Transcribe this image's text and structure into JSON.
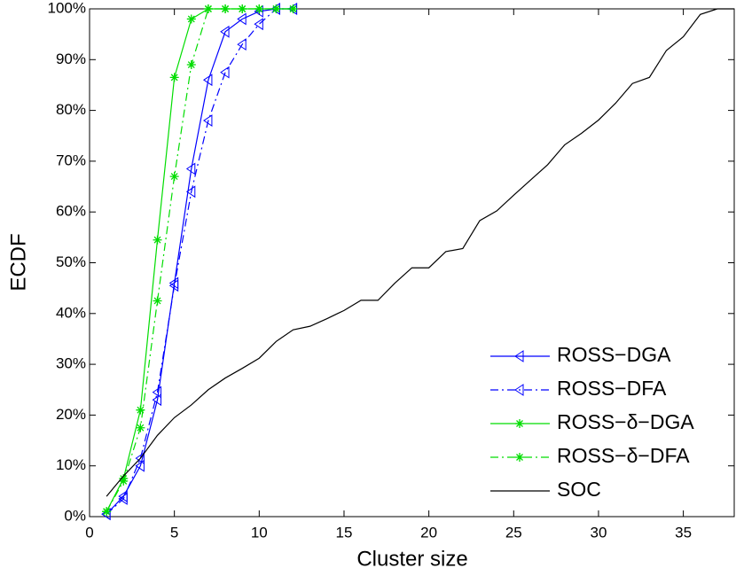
{
  "chart_data": {
    "type": "line",
    "xlabel": "Cluster size",
    "ylabel": "ECDF",
    "xlim": [
      0,
      38
    ],
    "ylim": [
      0,
      100
    ],
    "xticks": [
      0,
      5,
      10,
      15,
      20,
      25,
      30,
      35
    ],
    "yticks": [
      {
        "value": 0,
        "label": "0%"
      },
      {
        "value": 10,
        "label": "10%"
      },
      {
        "value": 20,
        "label": "20%"
      },
      {
        "value": 30,
        "label": "30%"
      },
      {
        "value": 40,
        "label": "40%"
      },
      {
        "value": 50,
        "label": "50%"
      },
      {
        "value": 60,
        "label": "60%"
      },
      {
        "value": 70,
        "label": "70%"
      },
      {
        "value": 80,
        "label": "80%"
      },
      {
        "value": 90,
        "label": "90%"
      },
      {
        "value": 100,
        "label": "100%"
      }
    ],
    "grid": false,
    "legend": "lower right",
    "series": [
      {
        "name": "ROSS−DGA",
        "color": "#0000ff",
        "dash": "solid",
        "marker": "triangle-left",
        "x": [
          1,
          2,
          3,
          4,
          5,
          6,
          7,
          8,
          9,
          10,
          11,
          12
        ],
        "values": [
          0.5,
          4,
          10,
          23,
          46,
          68.5,
          86,
          95.5,
          98,
          99.5,
          100,
          100
        ]
      },
      {
        "name": "ROSS−DFA",
        "color": "#0000ff",
        "dash": "dashdot",
        "marker": "triangle-left",
        "x": [
          1,
          2,
          3,
          4,
          5,
          6,
          7,
          8,
          9,
          10,
          11,
          12
        ],
        "values": [
          0.5,
          3.5,
          11.5,
          24.5,
          45.5,
          64,
          78,
          87.5,
          93,
          97,
          100,
          100
        ]
      },
      {
        "name": "ROSS−δ−DGA",
        "color": "#00dd00",
        "dash": "solid",
        "marker": "asterisk",
        "x": [
          1,
          2,
          3,
          4,
          5,
          6,
          7,
          8,
          9,
          10,
          11,
          12
        ],
        "values": [
          1,
          7.5,
          21,
          54.5,
          86.5,
          98,
          100,
          100,
          100,
          100,
          100,
          100
        ]
      },
      {
        "name": "ROSS−δ−DFA",
        "color": "#00dd00",
        "dash": "dashdot",
        "marker": "asterisk",
        "x": [
          1,
          2,
          3,
          4,
          5,
          6,
          7,
          8,
          9,
          10,
          11,
          12
        ],
        "values": [
          1,
          7,
          17.5,
          42.5,
          67,
          89,
          100,
          100,
          100,
          100,
          100,
          100
        ]
      },
      {
        "name": "SOC",
        "color": "#000000",
        "dash": "solid",
        "marker": "none",
        "x": [
          1,
          2,
          3,
          4,
          5,
          6,
          7,
          8,
          9,
          10,
          11,
          12,
          13,
          14,
          15,
          16,
          17,
          18,
          19,
          20,
          21,
          22,
          23,
          24,
          25,
          26,
          27,
          28,
          29,
          30,
          31,
          32,
          33,
          34,
          35,
          36,
          37,
          38
        ],
        "values": [
          4,
          8,
          11.5,
          16,
          19.5,
          22,
          25,
          27.3,
          29.2,
          31.2,
          34.5,
          36.8,
          37.5,
          39,
          40.6,
          42.6,
          42.6,
          46,
          49,
          49,
          52.2,
          52.8,
          58.3,
          60.2,
          63.3,
          66.3,
          69.3,
          73.2,
          75.5,
          78.1,
          81.4,
          85.3,
          86.5,
          91.8,
          94.5,
          98.9,
          100,
          100
        ]
      }
    ]
  }
}
